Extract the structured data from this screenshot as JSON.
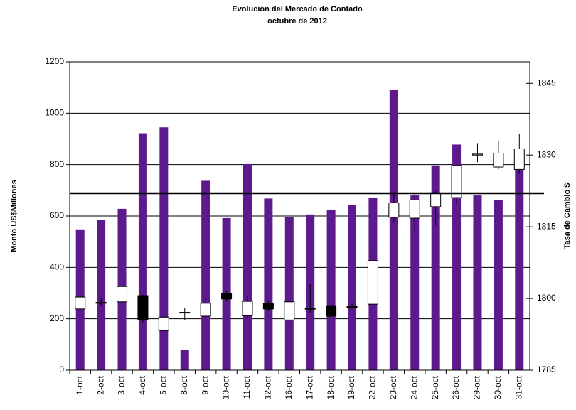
{
  "chart_data": {
    "type": "bar_candlestick",
    "title": "Evolución del Mercado de Contado",
    "subtitle": "octubre de 2012",
    "y_label": "Monto US$Millones",
    "y2_label": "Tasa de Cambio $",
    "categories": [
      "1-oct",
      "2-oct",
      "3-oct",
      "4-oct",
      "5-oct",
      "8-oct",
      "9-oct",
      "10-oct",
      "11-oct",
      "12-oct",
      "16-oct",
      "17-oct",
      "18-oct",
      "19-oct",
      "22-oct",
      "23-oct",
      "24-oct",
      "25-oct",
      "26-oct",
      "29-oct",
      "30-oct",
      "31-oct"
    ],
    "series": [
      {
        "type": "bar",
        "color": "#5c1a8c",
        "values": [
          548,
          585,
          628,
          922,
          945,
          78,
          737,
          592,
          802,
          668,
          597,
          606,
          625,
          642,
          672,
          1090,
          680,
          797,
          878,
          680,
          663,
          780
        ]
      },
      {
        "type": "candlestick",
        "axis": "y2",
        "up_color": "#ffffff",
        "down_color": "#000000",
        "open": [
          1797.8,
          1799.0,
          1799.3,
          1800.6,
          1793.3,
          1797.0,
          1796.3,
          1801.0,
          1796.4,
          1799.0,
          1795.5,
          1797.8,
          1798.5,
          1798.2,
          1798.8,
          1817.0,
          1816.8,
          1819.2,
          1821.1,
          1830.0,
          1827.5,
          1827.0
        ],
        "high": [
          1800.5,
          1800.0,
          1802.7,
          1800.8,
          1796.3,
          1798.0,
          1800.0,
          1801.5,
          1800.5,
          1799.5,
          1799.5,
          1803.0,
          1798.8,
          1799.0,
          1811.0,
          1822.0,
          1822.0,
          1822.5,
          1828.0,
          1832.5,
          1833.0,
          1834.5
        ],
        "low": [
          1797.5,
          1798.5,
          1799.0,
          1795.0,
          1793.0,
          1795.5,
          1796.0,
          1799.5,
          1796.0,
          1797.5,
          1795.2,
          1797.0,
          1796.0,
          1797.8,
          1798.0,
          1816.0,
          1813.5,
          1815.5,
          1820.0,
          1828.5,
          1827.0,
          1826.0
        ],
        "close": [
          1800.3,
          1799.2,
          1802.5,
          1795.5,
          1796.1,
          1797.1,
          1799.0,
          1799.9,
          1799.4,
          1797.8,
          1799.3,
          1797.9,
          1796.3,
          1798.3,
          1807.9,
          1820.0,
          1820.6,
          1822.1,
          1827.8,
          1830.2,
          1830.4,
          1831.3
        ]
      }
    ],
    "reference_line": {
      "value": 1822,
      "axis": "y2"
    },
    "ylim": [
      0,
      1200
    ],
    "yticks": [
      0,
      200,
      400,
      600,
      800,
      1000,
      1200
    ],
    "y2lim": [
      1785,
      1849.5
    ],
    "y2ticks": [
      1785,
      1800,
      1815,
      1830,
      1845
    ],
    "grid": true
  }
}
